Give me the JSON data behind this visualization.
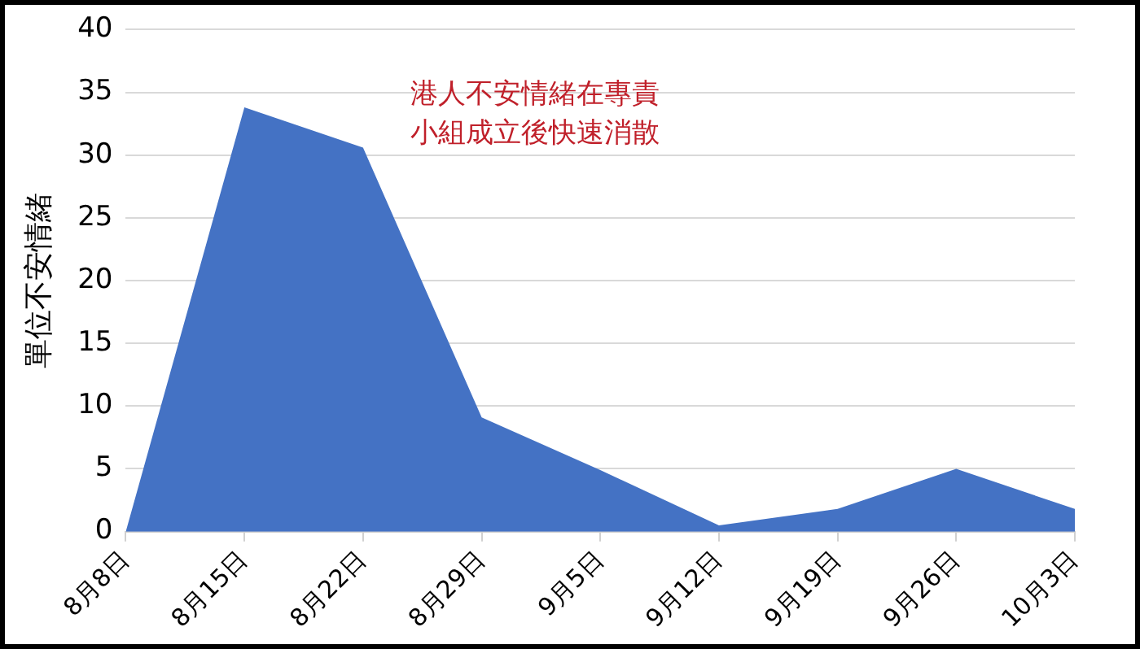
{
  "chart_data": {
    "type": "area",
    "ylabel": "單位不安情緒",
    "categories": [
      "8月8日",
      "8月15日",
      "8月22日",
      "8月29日",
      "9月5日",
      "9月12日",
      "9月19日",
      "9月26日",
      "10月3日"
    ],
    "series": [
      {
        "color": "#4472c4",
        "values": [
          0,
          33.8,
          30.6,
          9.1,
          4.9,
          0.5,
          1.8,
          5.0,
          1.8
        ]
      }
    ],
    "ylim": [
      0,
      40
    ],
    "yticks": [
      0,
      5,
      10,
      15,
      20,
      25,
      30,
      35,
      40
    ],
    "grid": "y",
    "legend": false,
    "annotations": [
      "港人不安情緒在專責小組成立後快速消散"
    ]
  }
}
